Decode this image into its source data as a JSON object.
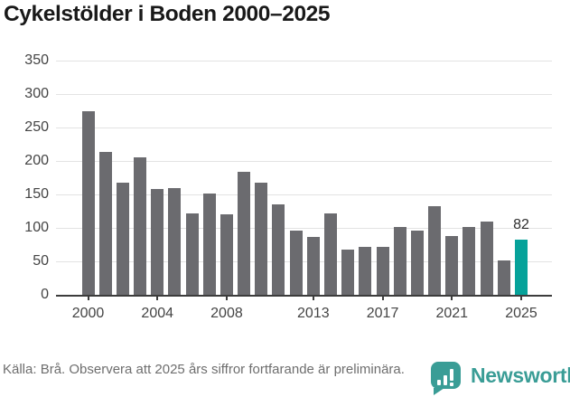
{
  "title": "Cykelstölder i Boden 2000–2025",
  "chart_data": {
    "type": "bar",
    "x": [
      2000,
      2001,
      2002,
      2003,
      2004,
      2005,
      2006,
      2007,
      2008,
      2009,
      2010,
      2011,
      2012,
      2013,
      2014,
      2015,
      2016,
      2017,
      2018,
      2019,
      2020,
      2021,
      2022,
      2023,
      2024,
      2025
    ],
    "values": [
      275,
      214,
      167,
      205,
      158,
      159,
      122,
      151,
      120,
      184,
      168,
      135,
      96,
      86,
      122,
      68,
      72,
      71,
      101,
      96,
      133,
      88,
      101,
      110,
      51,
      82
    ],
    "title": "Cykelstölder i Boden 2000–2025",
    "xlabel": "",
    "ylabel": "",
    "ylim": [
      0,
      350
    ],
    "yticks": [
      0,
      50,
      100,
      150,
      200,
      250,
      300,
      350
    ],
    "xticks": [
      2000,
      2004,
      2008,
      2013,
      2017,
      2021,
      2025
    ],
    "grid": "horizontal",
    "legend": "none",
    "bar_color": "#6b6b6f",
    "highlight_year": 2025,
    "highlight_color": "#06a29a",
    "highlight_label": "82"
  },
  "footer": {
    "source_note": "Källa: Brå. Observera att 2025 års siffror fortfarande är preliminära."
  },
  "branding": {
    "logo_text": "Newsworthy",
    "logo_icon": "bar-chart-speech-bubble-icon",
    "logo_color": "#3a9d96"
  }
}
